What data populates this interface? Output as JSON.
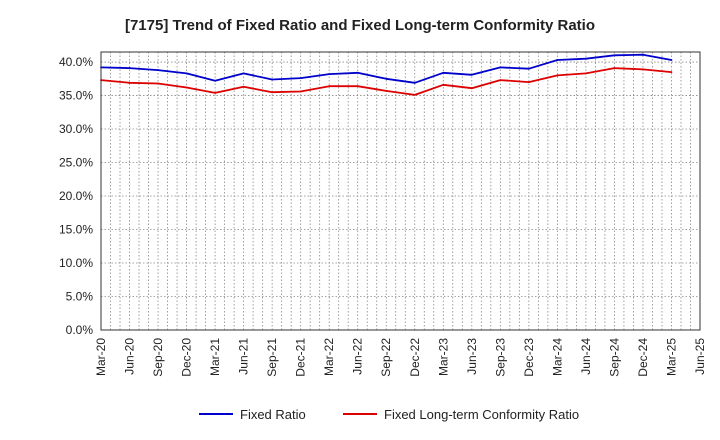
{
  "chart_data": {
    "type": "line",
    "title": "[7175]  Trend of Fixed Ratio and Fixed Long-term Conformity Ratio",
    "xlabel": "",
    "ylabel": "",
    "ylim": [
      0,
      40
    ],
    "y_ticks": [
      "0.0%",
      "5.0%",
      "10.0%",
      "15.0%",
      "20.0%",
      "25.0%",
      "30.0%",
      "35.0%",
      "40.0%"
    ],
    "y_tick_values": [
      0,
      5,
      10,
      15,
      20,
      25,
      30,
      35,
      40
    ],
    "x_ticks": [
      "Mar-20",
      "Jun-20",
      "Sep-20",
      "Dec-20",
      "Mar-21",
      "Jun-21",
      "Sep-21",
      "Dec-21",
      "Mar-22",
      "Jun-22",
      "Sep-22",
      "Dec-22",
      "Mar-23",
      "Jun-23",
      "Sep-23",
      "Dec-23",
      "Mar-24",
      "Jun-24",
      "Sep-24",
      "Dec-24",
      "Mar-25",
      "Jun-25"
    ],
    "categories": [
      "Mar-20",
      "Jun-20",
      "Sep-20",
      "Dec-20",
      "Mar-21",
      "Jun-21",
      "Sep-21",
      "Dec-21",
      "Mar-22",
      "Jun-22",
      "Sep-22",
      "Dec-22",
      "Mar-23",
      "Jun-23",
      "Sep-23",
      "Dec-23",
      "Mar-24",
      "Jun-24",
      "Sep-24",
      "Dec-24",
      "Mar-25"
    ],
    "grid": true,
    "legend_position": "bottom",
    "series": [
      {
        "name": "Fixed Ratio",
        "color": "#0000cc",
        "values": [
          39.2,
          39.1,
          38.8,
          38.3,
          37.2,
          38.3,
          37.4,
          37.6,
          38.2,
          38.4,
          37.5,
          36.9,
          38.4,
          38.1,
          39.2,
          39.0,
          40.3,
          40.5,
          41.0,
          41.1,
          40.3
        ]
      },
      {
        "name": "Fixed Long-term Conformity Ratio",
        "color": "#dd0000",
        "values": [
          37.3,
          36.9,
          36.8,
          36.2,
          35.4,
          36.3,
          35.5,
          35.6,
          36.4,
          36.4,
          35.7,
          35.1,
          36.6,
          36.1,
          37.3,
          37.0,
          38.0,
          38.3,
          39.1,
          38.9,
          38.5
        ]
      }
    ]
  }
}
